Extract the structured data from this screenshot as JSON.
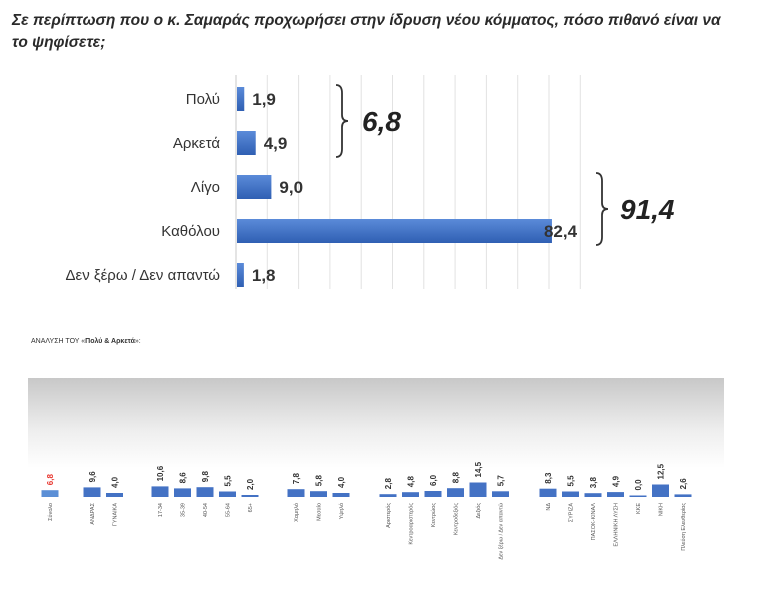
{
  "question": "Σε περίπτωση που ο κ. Σαμαράς προχωρήσει στην ίδρυση νέου κόμματος, πόσο πιθανό είναι να το ψηφίσετε;",
  "chart_data": [
    {
      "type": "bar",
      "orientation": "horizontal",
      "categories": [
        "Πολύ",
        "Αρκετά",
        "Λίγο",
        "Καθόλου",
        "Δεν ξέρω / Δεν απαντώ"
      ],
      "values": [
        1.9,
        4.9,
        9.0,
        82.4,
        1.8
      ],
      "value_labels": [
        "1,9",
        "4,9",
        "9,0",
        "82,4",
        "1,8"
      ],
      "xlim": [
        0,
        90
      ],
      "grid": true,
      "bar_color": "#4472c4",
      "annotations": [
        {
          "text": "6,8",
          "spans": [
            "Πολύ",
            "Αρκετά"
          ]
        },
        {
          "text": "91,4",
          "spans": [
            "Λίγο",
            "Καθόλου"
          ]
        }
      ]
    },
    {
      "type": "bar",
      "title_prefix": "ΑΝΑΛΥΣΗ ΤΟΥ «",
      "title_bold": "Πολύ & Αρκετά",
      "title_suffix": "»:",
      "categories": [
        "Σύνολο",
        "ΑΝΔΡΑΣ",
        "ΓΥΝΑΙΚΑ",
        "17-34",
        "35-39",
        "40-54",
        "55-64",
        "65+",
        "Χαμηλό",
        "Μεσαίο",
        "Υψηλό",
        "Αριστερός",
        "Κεντροαριστερός",
        "Κεντρώος",
        "Κεντροδεξιός",
        "Δεξιός",
        "Δεν ξέρω / Δεν απαντώ",
        "ΝΔ",
        "ΣΥΡΙΖΑ",
        "ΠΑΣΟΚ-ΚΙΝΑΛ",
        "ΕΛΛΗΝΙΚΗ ΛΥΣΗ",
        "ΚΚΕ",
        "ΝΙΚΗ",
        "Πλεύση Ελευθερίας"
      ],
      "values": [
        6.8,
        9.6,
        4.0,
        10.6,
        8.6,
        9.8,
        5.5,
        2.0,
        7.8,
        5.8,
        4.0,
        2.8,
        4.8,
        6.0,
        8.8,
        14.5,
        5.7,
        8.3,
        5.5,
        3.8,
        4.9,
        0.0,
        12.5,
        2.6
      ],
      "value_labels": [
        "6,8",
        "9,6",
        "4,0",
        "10,6",
        "8,6",
        "9,8",
        "5,5",
        "2,0",
        "7,8",
        "5,8",
        "4,0",
        "2,8",
        "4,8",
        "6,0",
        "8,8",
        "14,5",
        "5,7",
        "8,3",
        "5,5",
        "3,8",
        "4,9",
        "0,0",
        "12,5",
        "2,6"
      ],
      "highlight_index": 0,
      "highlight_color": "#e8362e",
      "bar_color": "#4472c4"
    }
  ]
}
